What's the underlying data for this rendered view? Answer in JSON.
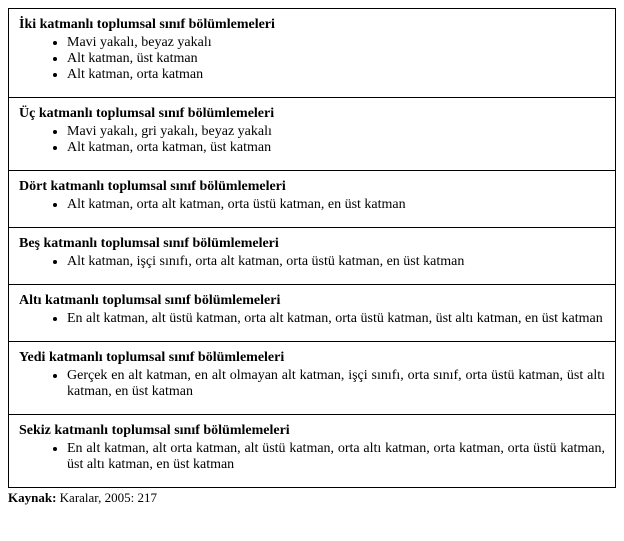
{
  "sections": [
    {
      "title": "İki katmanlı toplumsal sınıf bölümlemeleri",
      "items": [
        "Mavi yakalı, beyaz yakalı",
        "Alt katman, üst katman",
        "Alt katman, orta katman"
      ]
    },
    {
      "title": "Üç katmanlı toplumsal sınıf bölümlemeleri",
      "items": [
        "Mavi yakalı, gri yakalı, beyaz yakalı",
        "Alt katman, orta katman, üst katman"
      ]
    },
    {
      "title": "Dört katmanlı toplumsal sınıf bölümlemeleri",
      "items": [
        "Alt katman, orta alt katman, orta üstü katman, en üst katman"
      ]
    },
    {
      "title": "Beş katmanlı toplumsal sınıf bölümlemeleri",
      "items": [
        "Alt katman, işçi sınıfı, orta alt katman, orta üstü katman, en üst katman"
      ]
    },
    {
      "title": "Altı katmanlı toplumsal sınıf bölümlemeleri",
      "items": [
        "En alt katman, alt üstü katman, orta alt katman, orta üstü katman, üst altı katman, en üst katman"
      ]
    },
    {
      "title": "Yedi katmanlı toplumsal sınıf bölümlemeleri",
      "items": [
        "Gerçek en alt katman, en alt olmayan alt katman, işçi sınıfı, orta sınıf, orta üstü katman, üst altı katman, en üst katman"
      ]
    },
    {
      "title": "Sekiz katmanlı toplumsal sınıf bölümlemeleri",
      "items": [
        "En alt katman, alt orta katman, alt üstü katman, orta altı katman, orta katman, orta üstü katman, üst altı katman, en üst katman"
      ]
    }
  ],
  "source_label": "Kaynak:",
  "source_text": " Karalar, 2005: 217"
}
